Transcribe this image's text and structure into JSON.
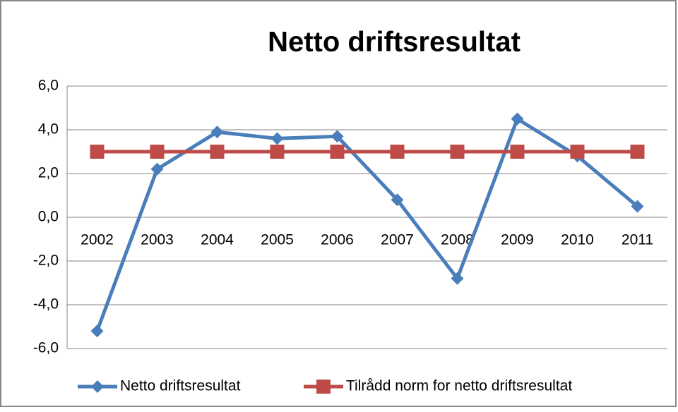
{
  "chart_data": {
    "type": "line",
    "title": "Netto driftsresultat",
    "categories": [
      "2002",
      "2003",
      "2004",
      "2005",
      "2006",
      "2007",
      "2008",
      "2009",
      "2010",
      "2011"
    ],
    "series": [
      {
        "name": "Netto driftsresultat",
        "color": "#4a7ebb",
        "marker": "diamond",
        "values": [
          -5.2,
          2.2,
          3.9,
          3.6,
          3.7,
          0.8,
          -2.8,
          4.5,
          2.8,
          0.5
        ]
      },
      {
        "name": "Tilrådd norm for netto driftsresultat",
        "color": "#be4b48",
        "marker": "square",
        "values": [
          3.0,
          3.0,
          3.0,
          3.0,
          3.0,
          3.0,
          3.0,
          3.0,
          3.0,
          3.0
        ]
      }
    ],
    "ylim": [
      -6,
      6
    ],
    "yticks": [
      {
        "value": -6,
        "label": "-6,0"
      },
      {
        "value": -4,
        "label": "-4,0"
      },
      {
        "value": -2,
        "label": "-2,0"
      },
      {
        "value": 0,
        "label": "0,0"
      },
      {
        "value": 2,
        "label": "2,0"
      },
      {
        "value": 4,
        "label": "4,0"
      },
      {
        "value": 6,
        "label": "6,0"
      }
    ],
    "grid": true,
    "legend": "bottom"
  }
}
